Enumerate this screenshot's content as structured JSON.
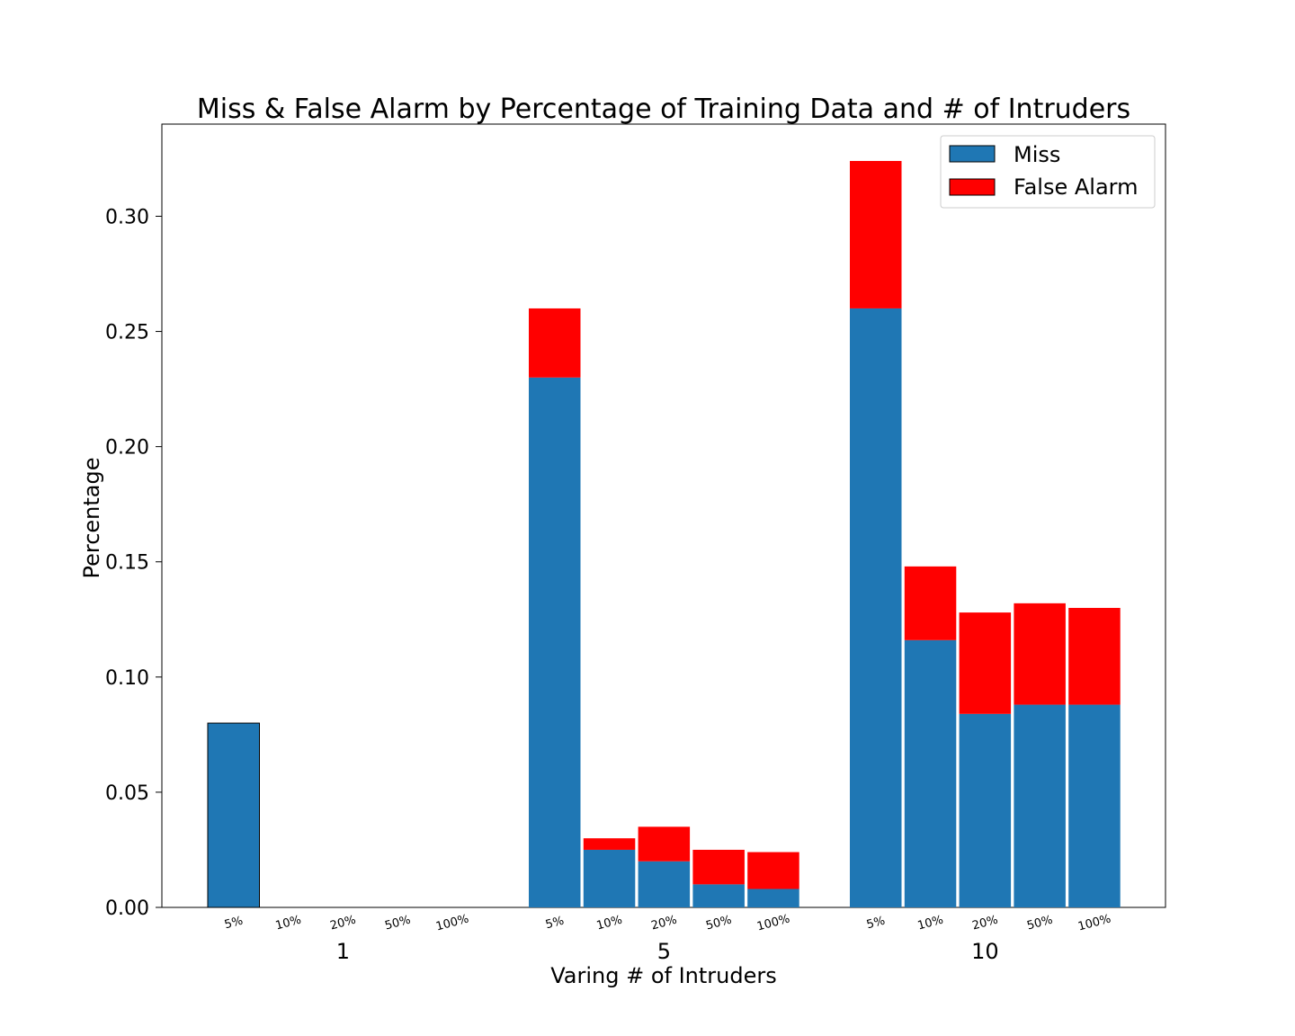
{
  "chart_data": {
    "type": "bar",
    "stacked": true,
    "title": "Miss & False Alarm by Percentage of Training Data and # of Intruders",
    "xlabel": "Varing # of Intruders",
    "ylabel": "Percentage",
    "ylim": [
      0,
      0.34
    ],
    "yticks": [
      "0.00",
      "0.05",
      "0.10",
      "0.15",
      "0.20",
      "0.25",
      "0.30"
    ],
    "groups": [
      "1",
      "5",
      "10"
    ],
    "subcategories": [
      "5%",
      "10%",
      "20%",
      "50%",
      "100%"
    ],
    "series": [
      {
        "name": "Miss",
        "color": "#1f77b4",
        "values": [
          [
            0.08,
            0,
            0,
            0,
            0
          ],
          [
            0.23,
            0.025,
            0.02,
            0.01,
            0.008
          ],
          [
            0.26,
            0.116,
            0.084,
            0.088,
            0.088
          ]
        ]
      },
      {
        "name": "False Alarm",
        "color": "#ff0000",
        "values": [
          [
            0,
            0,
            0,
            0,
            0
          ],
          [
            0.03,
            0.005,
            0.015,
            0.015,
            0.016
          ],
          [
            0.064,
            0.032,
            0.044,
            0.044,
            0.042
          ]
        ]
      }
    ],
    "legend_position": "top-right",
    "grid": false
  }
}
